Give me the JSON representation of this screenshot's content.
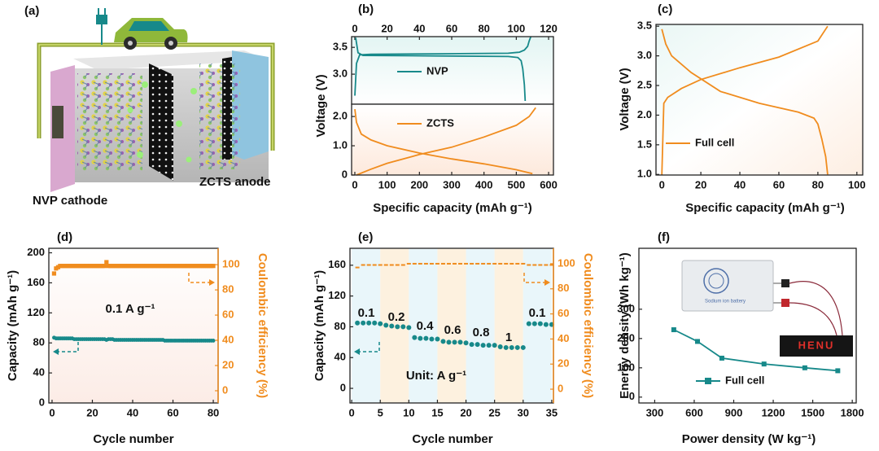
{
  "chart_data": [
    {
      "type": "schematic",
      "label": "(a)",
      "texts": [
        "NVP cathode",
        "ZCTS anode"
      ]
    },
    {
      "type": "stacked-line",
      "label": "(b)",
      "ylabel": "Voltage (V)",
      "xlabel": "Specific capacity (mAh g⁻¹)",
      "panels": [
        {
          "xlim": [
            -2,
            123
          ],
          "xticks": [
            0,
            20,
            40,
            60,
            80,
            100,
            120
          ],
          "ylim": [
            2.44,
            3.7
          ],
          "yticks": [
            {
              "value": 3,
              "label": "3.0"
            },
            3.5
          ],
          "series": [
            {
              "name": "NVP",
              "color": "#17898a",
              "x": [
                0,
                1,
                3,
                10,
                50,
                95,
                102,
                105,
                107,
                108,
                109,
                null,
                0.5,
                2,
                5,
                50,
                95,
                101,
                103,
                104,
                105,
                105.5
              ],
              "values": [
                2.6,
                3.2,
                3.36,
                3.37,
                3.38,
                3.39,
                3.41,
                3.45,
                3.52,
                3.62,
                3.7,
                null,
                3.68,
                3.4,
                3.35,
                3.34,
                3.33,
                3.31,
                3.25,
                3.1,
                2.8,
                2.5
              ]
            }
          ]
        },
        {
          "xlim": [
            -10,
            615
          ],
          "xticks": [
            0,
            100,
            200,
            300,
            400,
            500,
            600
          ],
          "ylim": [
            0,
            2.42
          ],
          "yticks": [
            0,
            {
              "value": 1,
              "label": "1.0"
            },
            {
              "value": 2,
              "label": "2.0"
            }
          ],
          "series": [
            {
              "name": "ZCTS",
              "color": "#f08c1e",
              "x": [
                0,
                5,
                20,
                50,
                100,
                200,
                300,
                400,
                500,
                550,
                null,
                5,
                50,
                100,
                200,
                300,
                400,
                500,
                540,
                560
              ],
              "values": [
                2.25,
                1.8,
                1.4,
                1.2,
                1.0,
                0.75,
                0.55,
                0.38,
                0.18,
                0.05,
                null,
                0,
                0.2,
                0.4,
                0.7,
                0.95,
                1.3,
                1.7,
                2.0,
                2.3
              ]
            }
          ]
        }
      ]
    },
    {
      "type": "line",
      "label": "(c)",
      "ylabel": "Voltage (V)",
      "xlabel": "Specific capacity (mAh g⁻¹)",
      "xlim": [
        -3,
        103
      ],
      "xticks": [
        0,
        20,
        40,
        60,
        80,
        100
      ],
      "ylim": [
        0.99,
        3.53
      ],
      "yticks": [
        {
          "value": 1,
          "label": "1.0"
        },
        1.5,
        {
          "value": 2,
          "label": "2.0"
        },
        2.5,
        {
          "value": 3,
          "label": "3.0"
        },
        3.5
      ],
      "series": [
        {
          "name": "Full cell",
          "color": "#f08c1e",
          "x": [
            0,
            0.5,
            1,
            3,
            10,
            20,
            40,
            60,
            80,
            85,
            null,
            0,
            2,
            5,
            15,
            30,
            50,
            70,
            78,
            80,
            82,
            84,
            85
          ],
          "values": [
            1.0,
            1.6,
            2.2,
            2.3,
            2.45,
            2.6,
            2.8,
            2.98,
            3.25,
            3.5,
            null,
            3.45,
            3.2,
            3.0,
            2.72,
            2.4,
            2.2,
            2.05,
            1.95,
            1.85,
            1.6,
            1.3,
            1.0
          ]
        }
      ]
    },
    {
      "type": "dual-axis-scatter",
      "label": "(d)",
      "ylabel": "Capacity (mAh g⁻¹)",
      "y2label": "Coulombic efficiency (%)",
      "xlabel": "Cycle number",
      "annotations": [
        "0.1 A g⁻¹"
      ],
      "x": [
        1,
        2,
        3,
        4,
        5,
        6,
        7,
        8,
        9,
        10,
        11,
        12,
        13,
        14,
        15,
        16,
        17,
        18,
        19,
        20,
        21,
        22,
        23,
        24,
        25,
        26,
        27,
        28,
        29,
        30,
        31,
        32,
        33,
        34,
        35,
        36,
        37,
        38,
        39,
        40,
        41,
        42,
        43,
        44,
        45,
        46,
        47,
        48,
        49,
        50,
        51,
        52,
        53,
        54,
        55,
        56,
        57,
        58,
        59,
        60,
        61,
        62,
        63,
        64,
        65,
        66,
        67,
        68,
        69,
        70,
        71,
        72,
        73,
        74,
        75,
        76,
        77,
        78,
        79,
        80
      ],
      "xlim": [
        -1.6,
        82.4
      ],
      "xticks": [
        0,
        20,
        40,
        60,
        80
      ],
      "ylim": [
        0,
        206
      ],
      "yticks": [
        0,
        40,
        80,
        120,
        160,
        200
      ],
      "y2lim": [
        -9.7,
        113
      ],
      "y2ticks": [
        0,
        20,
        40,
        60,
        80,
        100
      ],
      "series": [
        {
          "color": "#17898a",
          "marker": "circle",
          "values": [
            87,
            86,
            86,
            86,
            86,
            86,
            86,
            86,
            86,
            86,
            85,
            85,
            85,
            85,
            85,
            85,
            85,
            85,
            85,
            85,
            85,
            85,
            85,
            85,
            85,
            85,
            84,
            85,
            85,
            85,
            84,
            84,
            84,
            84,
            84,
            84,
            84,
            84,
            84,
            84,
            84,
            84,
            84,
            84,
            84,
            84,
            84,
            84,
            84,
            84,
            84,
            84,
            84,
            84,
            84,
            83,
            83,
            83,
            83,
            83,
            83,
            83,
            83,
            83,
            83,
            83,
            83,
            83,
            83,
            83,
            83,
            83,
            83,
            83,
            83,
            83,
            83,
            83,
            83,
            83
          ]
        },
        {
          "color": "#f08c1e",
          "marker": "square",
          "axis": "y2",
          "values": [
            93,
            97,
            98,
            99,
            99,
            99,
            99,
            99,
            99,
            99,
            99,
            99,
            99,
            99,
            99,
            99,
            99,
            99,
            99,
            99,
            99,
            99,
            99,
            99,
            99,
            99,
            102,
            99,
            99,
            99,
            99,
            99,
            99,
            99,
            99,
            99,
            99,
            99,
            99,
            99,
            99,
            99,
            99,
            99,
            99,
            99,
            99,
            99,
            99,
            99,
            99,
            99,
            99,
            99,
            99,
            99,
            99,
            99,
            99,
            99,
            99,
            99,
            99,
            99,
            99,
            99,
            99,
            99,
            99,
            99,
            99,
            99,
            99,
            99,
            99,
            99,
            99,
            99,
            99,
            99
          ]
        }
      ]
    },
    {
      "type": "dual-axis-scatter",
      "label": "(e)",
      "ylabel": "Capacity (mAh g⁻¹)",
      "y2label": "Coulombic efficiency (%)",
      "xlabel": "Cycle number",
      "annotations": [
        "0.1",
        "0.2",
        "0.4",
        "0.6",
        "0.8",
        "1",
        "0.1",
        "Unit: A g⁻¹"
      ],
      "x": [
        1,
        2,
        3,
        4,
        5,
        6,
        7,
        8,
        9,
        10,
        11,
        12,
        13,
        14,
        15,
        16,
        17,
        18,
        19,
        20,
        21,
        22,
        23,
        24,
        25,
        26,
        27,
        28,
        29,
        30,
        31,
        32,
        33,
        34,
        35
      ],
      "xlim": [
        -0.3,
        35.3
      ],
      "xticks": [
        0,
        5,
        10,
        15,
        20,
        25,
        30,
        35
      ],
      "ylim": [
        -19,
        182
      ],
      "yticks": [
        0,
        40,
        80,
        120,
        160
      ],
      "y2lim": [
        -11,
        112.3
      ],
      "y2ticks": [
        0,
        20,
        40,
        60,
        80,
        100
      ],
      "series": [
        {
          "color": "#17898a",
          "marker": "circle",
          "values": [
            85,
            85,
            85,
            85,
            84,
            82,
            81,
            80,
            80,
            79,
            66,
            65,
            65,
            64,
            64,
            61,
            60,
            60,
            60,
            59,
            57,
            57,
            56,
            56,
            56,
            54,
            53,
            53,
            53,
            53,
            84,
            84,
            84,
            83,
            83
          ]
        },
        {
          "color": "#f08c1e",
          "marker": "dash",
          "axis": "y2",
          "values": [
            97,
            99,
            99,
            99,
            99,
            99,
            99,
            99,
            99,
            100,
            100,
            100,
            100,
            100,
            100,
            100,
            100,
            100,
            100,
            100,
            100,
            100,
            100,
            100,
            100,
            100,
            100,
            100,
            100,
            100,
            99,
            99,
            99,
            99,
            99
          ]
        }
      ]
    },
    {
      "type": "line",
      "label": "(f)",
      "ylabel": "Energy density (Wh kg⁻¹)",
      "xlabel": "Power density (W kg⁻¹)",
      "inset_texts": [
        "Sodium ion battery",
        "HENU"
      ],
      "xlim": [
        180,
        1830
      ],
      "xticks": [
        300,
        600,
        900,
        1200,
        1500,
        1800
      ],
      "ylim": [
        -20,
        508
      ],
      "yticks": [
        0,
        100,
        200,
        300
      ],
      "series": [
        {
          "name": "Full cell",
          "color": "#17898a",
          "marker": "square",
          "x": [
            445,
            625,
            810,
            1130,
            1440,
            1690
          ],
          "values": [
            230,
            190,
            133,
            113,
            100,
            90
          ]
        }
      ]
    }
  ]
}
